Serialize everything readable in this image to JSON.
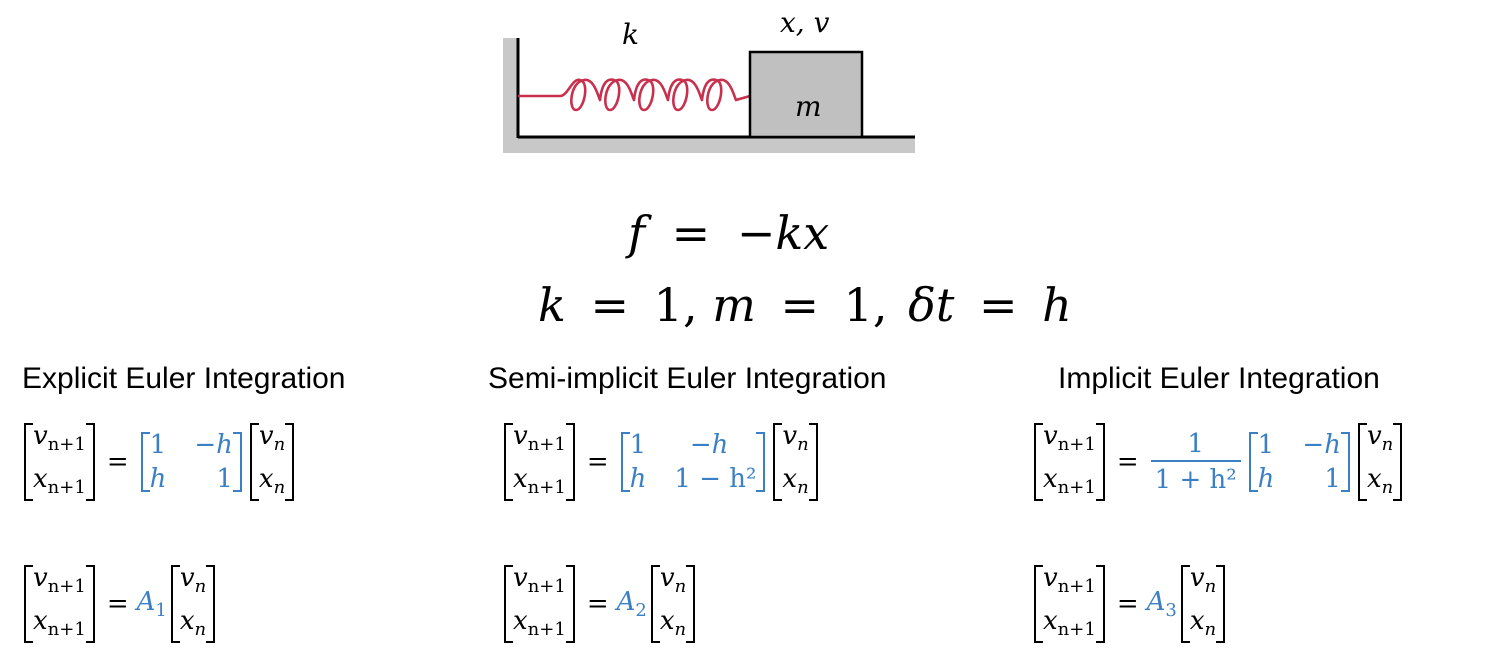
{
  "diagram": {
    "spring_label": "k",
    "mass_state_label": "x, v",
    "mass_label": "m",
    "colors": {
      "spring": "#c8314e",
      "mass_fill": "#c0c0c0",
      "wall": "#c8c8c8",
      "accent": "#3b7fc4"
    }
  },
  "equations": {
    "force": {
      "lhs": "f",
      "eq": "=",
      "rhs": "−kx"
    },
    "params": {
      "k": "k",
      "k_val": "1",
      "m": "m",
      "m_val": "1",
      "dt": "δt",
      "dt_val": "h",
      "eq": "=",
      "sep": ","
    }
  },
  "sections": [
    {
      "title": "Explicit Euler Integration",
      "matrix": [
        [
          "1",
          "−h"
        ],
        [
          "h",
          "1"
        ]
      ],
      "alias": "A",
      "alias_sub": "1"
    },
    {
      "title": "Semi-implicit Euler Integration",
      "matrix": [
        [
          "1",
          "−h"
        ],
        [
          "h",
          "1 − h²"
        ]
      ],
      "alias": "A",
      "alias_sub": "2"
    },
    {
      "title": "Implicit Euler Integration",
      "fraction": {
        "numerator": "1",
        "denominator": "1 + h²"
      },
      "matrix": [
        [
          "1",
          "−h"
        ],
        [
          "h",
          "1"
        ]
      ],
      "alias": "A",
      "alias_sub": "3"
    }
  ],
  "state_vectors": {
    "v": "v",
    "x": "x",
    "next_sub": "n+1",
    "cur_sub": "n",
    "eq": "="
  }
}
